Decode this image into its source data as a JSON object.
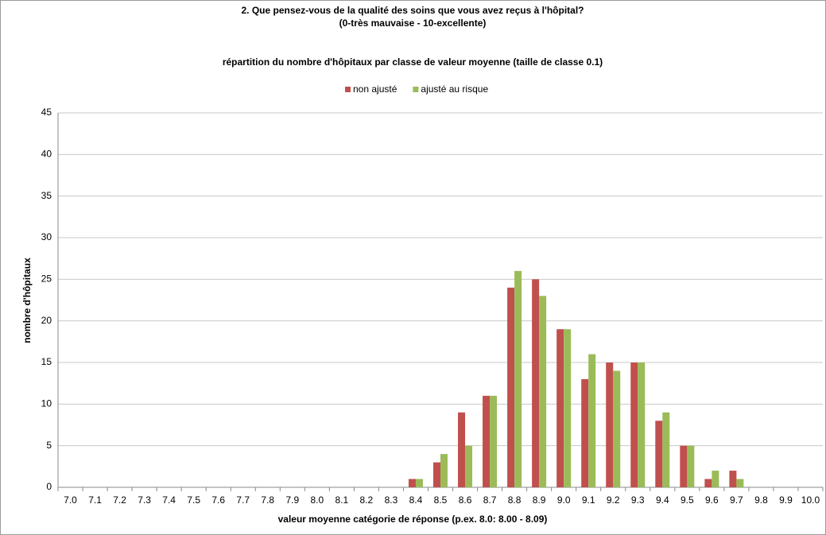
{
  "chart_data": {
    "type": "bar",
    "title": [
      "2. Que pensez-vous de la qualité des soins que vous avez reçus à l'hôpital?",
      "(0-très mauvaise - 10-excellente)"
    ],
    "subtitle": "répartition du nombre d'hôpitaux par classe de valeur moyenne (taille de classe 0.1)",
    "x_label": "valeur moyenne catégorie de réponse (p.ex. 8.0: 8.00 - 8.09)",
    "y_label": "nombre d'hôpitaux",
    "categories": [
      "7.0",
      "7.1",
      "7.2",
      "7.3",
      "7.4",
      "7.5",
      "7.6",
      "7.7",
      "7.8",
      "7.9",
      "8.0",
      "8.1",
      "8.2",
      "8.3",
      "8.4",
      "8.5",
      "8.6",
      "8.7",
      "8.8",
      "8.9",
      "9.0",
      "9.1",
      "9.2",
      "9.3",
      "9.4",
      "9.5",
      "9.6",
      "9.7",
      "9.8",
      "9.9",
      "10.0"
    ],
    "series": [
      {
        "name": "non ajusté",
        "color": "#c0504d",
        "values": [
          0,
          0,
          0,
          0,
          0,
          0,
          0,
          0,
          0,
          0,
          0,
          0,
          0,
          0,
          1,
          3,
          9,
          11,
          24,
          25,
          19,
          13,
          15,
          15,
          8,
          5,
          1,
          2,
          0,
          0,
          0
        ]
      },
      {
        "name": "ajusté au risque",
        "color": "#9bbb59",
        "values": [
          0,
          0,
          0,
          0,
          0,
          0,
          0,
          0,
          0,
          0,
          0,
          0,
          0,
          0,
          1,
          4,
          5,
          11,
          26,
          23,
          19,
          16,
          14,
          15,
          9,
          5,
          2,
          1,
          0,
          0,
          0
        ]
      }
    ],
    "ylim": [
      0,
      45
    ],
    "yticks": [
      0,
      5,
      10,
      15,
      20,
      25,
      30,
      35,
      40,
      45
    ],
    "grid": true,
    "legend": "top"
  }
}
